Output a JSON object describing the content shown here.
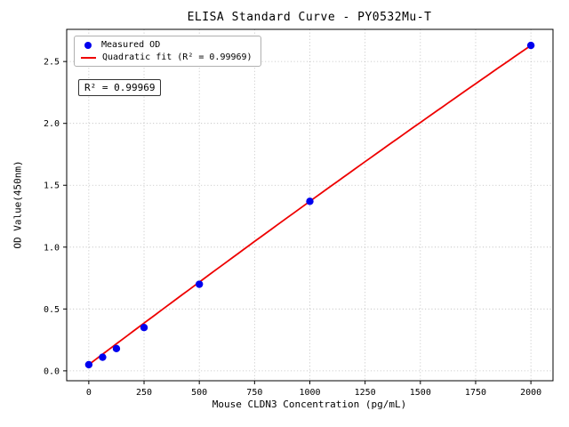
{
  "chart_data": {
    "type": "scatter",
    "title": "ELISA Standard Curve - PY0532Mu-T",
    "xlabel": "Mouse CLDN3 Concentration (pg/mL)",
    "ylabel": "OD Value(450nm)",
    "xlim": [
      -100,
      2100
    ],
    "ylim": [
      -0.08,
      2.76
    ],
    "x_ticks": [
      0,
      250,
      500,
      750,
      1000,
      1250,
      1500,
      1750,
      2000
    ],
    "y_ticks": [
      0.0,
      0.5,
      1.0,
      1.5,
      2.0,
      2.5
    ],
    "y_tick_labels": [
      "0.0",
      "0.5",
      "1.0",
      "1.5",
      "2.0",
      "2.5"
    ],
    "grid": true,
    "grid_style": "dotted",
    "legend_position": "upper-left",
    "series": [
      {
        "name": "Measured OD",
        "type": "scatter",
        "color": "#0000ee",
        "x": [
          0,
          62.5,
          125,
          250,
          500,
          1000,
          2000
        ],
        "y": [
          0.05,
          0.11,
          0.18,
          0.35,
          0.7,
          1.37,
          2.63
        ]
      },
      {
        "name": "Quadratic fit (R² = 0.99969)",
        "type": "line",
        "color": "#ee0000",
        "fit_coeffs": [
          0.05,
          0.00135,
          -3e-08
        ],
        "x_range": [
          0,
          2000
        ]
      }
    ],
    "annotation": "R² = 0.99969",
    "colors": {
      "point": "#0000ee",
      "line": "#ee0000",
      "grid": "#b5b5b5",
      "axis": "#000000",
      "background": "#ffffff"
    }
  }
}
